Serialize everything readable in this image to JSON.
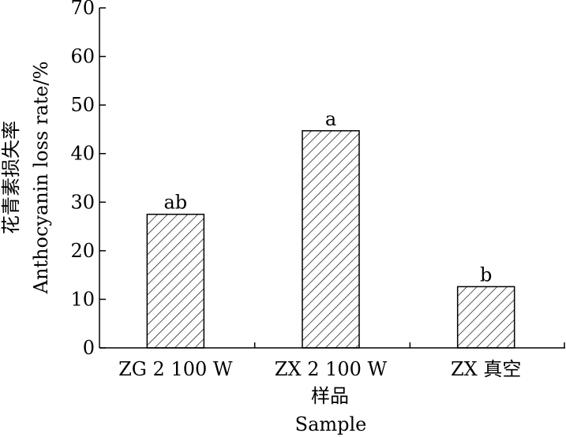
{
  "chart_data": {
    "type": "bar",
    "categories": [
      "ZG 2 100 W",
      "ZX 2 100 W",
      "ZX 真空"
    ],
    "values": [
      27.5,
      44.7,
      12.6
    ],
    "significance_labels": [
      "ab",
      "a",
      "b"
    ],
    "ylim": [
      0,
      70
    ],
    "yticks": [
      "0",
      "10",
      "20",
      "30",
      "40",
      "50",
      "60",
      "70"
    ],
    "xlabel_cn": "样品",
    "xlabel_en": "Sample",
    "ylabel_cn": "花青素损失率",
    "ylabel_en": "Anthocyanin loss rate/%",
    "grid": false,
    "legend": "none",
    "bar_fill": "hatched",
    "colors": {
      "bar_stroke": "#000000",
      "hatch": "#000000",
      "axis": "#000000"
    }
  }
}
